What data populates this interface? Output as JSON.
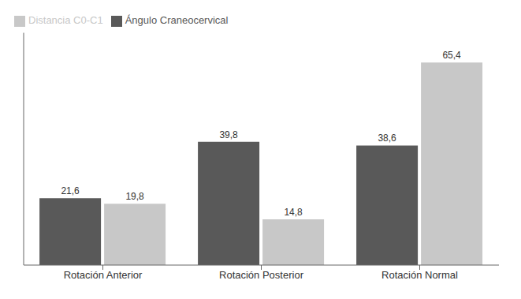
{
  "chart_data": {
    "type": "bar",
    "categories": [
      "Rotación Anterior",
      "Rotación Posterior",
      "Rotación Normal"
    ],
    "series": [
      {
        "name": "Ángulo Craneocervical",
        "color": "#595959",
        "values": [
          21.6,
          39.8,
          38.6
        ],
        "value_labels": [
          "21,6",
          "39,8",
          "38,6"
        ]
      },
      {
        "name": "Distancia C0-C1",
        "color": "#c8c8c8",
        "values": [
          19.8,
          14.8,
          65.4
        ],
        "value_labels": [
          "19,8",
          "14,8",
          "65,4"
        ]
      }
    ],
    "ylim": [
      0,
      75
    ],
    "grid": false,
    "legend": "upper left",
    "data_labels": true,
    "tick_labels": "x"
  }
}
